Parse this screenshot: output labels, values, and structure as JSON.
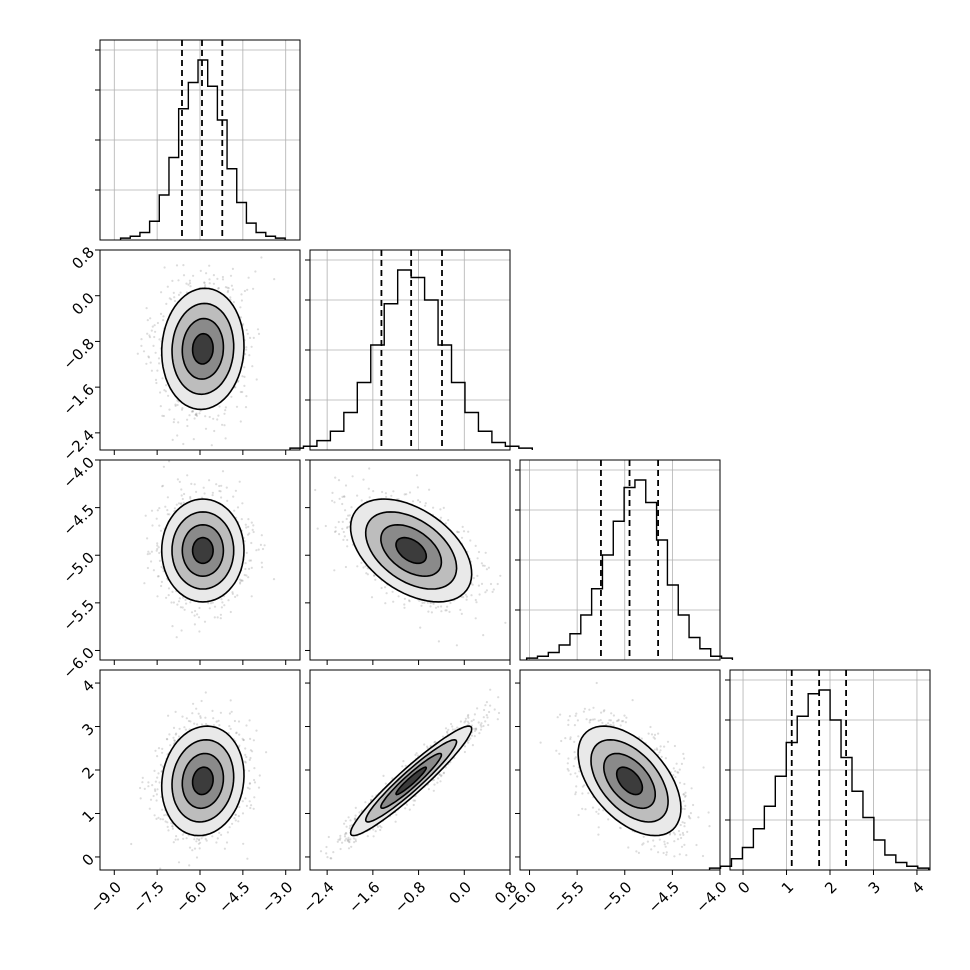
{
  "chart_data": {
    "type": "corner",
    "colors": {
      "hist": "#000000",
      "quantile": "#000000",
      "contour": "#000000",
      "grid": "#b0b0b0",
      "points": "#9a9a9a"
    },
    "grid": true,
    "quantiles": [
      0.16,
      0.5,
      0.84
    ],
    "params": [
      {
        "ticks": [
          "−9.0",
          "−7.5",
          "−6.0",
          "−4.5",
          "−3.0"
        ],
        "tick_values": [
          -9.0,
          -7.5,
          -6.0,
          -4.5,
          -3.0
        ],
        "range": [
          -9.5,
          -2.5
        ],
        "mean": -5.9,
        "sd": 0.72,
        "quantile_values": [
          -6.63,
          -5.93,
          -5.22
        ]
      },
      {
        "ticks": [
          "−2.4",
          "−1.6",
          "−0.8",
          "0.0",
          "0.8"
        ],
        "tick_values": [
          -2.4,
          -1.6,
          -0.8,
          0.0,
          0.8
        ],
        "range": [
          -2.7,
          0.8
        ],
        "mean": -0.93,
        "sd": 0.53,
        "quantile_values": [
          -1.45,
          -0.93,
          -0.39
        ]
      },
      {
        "ticks": [
          "−6.0",
          "−5.5",
          "−5.0",
          "−4.5",
          "−4.0"
        ],
        "tick_values": [
          -6.0,
          -5.5,
          -5.0,
          -4.5,
          -4.0
        ],
        "range": [
          -6.1,
          -4.0
        ],
        "mean": -4.95,
        "sd": 0.27,
        "quantile_values": [
          -5.25,
          -4.95,
          -4.65
        ]
      },
      {
        "ticks": [
          "0",
          "1",
          "2",
          "3",
          "4"
        ],
        "tick_values": [
          0,
          1,
          2,
          3,
          4
        ],
        "range": [
          -0.3,
          4.3
        ],
        "mean": 1.75,
        "sd": 0.63,
        "quantile_values": [
          1.12,
          1.75,
          2.37
        ]
      }
    ],
    "correlations": [
      [
        1.0,
        0.05,
        0.0,
        0.1
      ],
      [
        0.05,
        1.0,
        -0.45,
        0.95
      ],
      [
        0.0,
        -0.45,
        1.0,
        -0.5
      ],
      [
        0.1,
        0.95,
        -0.5,
        1.0
      ]
    ],
    "diag_hist_counts": [
      [
        1,
        2,
        4,
        10,
        24,
        44,
        70,
        84,
        96,
        82,
        64,
        38,
        20,
        9,
        4,
        2,
        1
      ],
      [
        1,
        2,
        5,
        10,
        20,
        36,
        56,
        78,
        96,
        92,
        80,
        56,
        36,
        20,
        10,
        4,
        2,
        1
      ],
      [
        1,
        2,
        4,
        8,
        14,
        24,
        38,
        56,
        74,
        92,
        96,
        84,
        64,
        40,
        24,
        12,
        6,
        2,
        1
      ],
      [
        1,
        2,
        6,
        12,
        22,
        34,
        50,
        68,
        82,
        94,
        96,
        80,
        60,
        42,
        28,
        16,
        8,
        4,
        2,
        1
      ]
    ]
  }
}
